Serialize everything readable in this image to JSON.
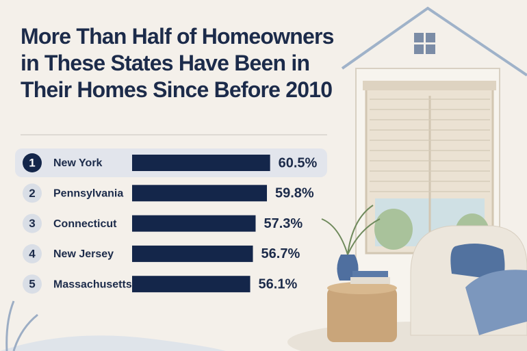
{
  "chart_data": {
    "type": "bar",
    "title": "More Than Half of Homeowners in These States Have Been in Their Homes Since Before 2010",
    "ranks": [
      1,
      2,
      3,
      4,
      5
    ],
    "categories": [
      "New York",
      "Pennsylvania",
      "Connecticut",
      "New Jersey",
      "Massachusetts"
    ],
    "values": [
      60.5,
      59.8,
      57.3,
      56.7,
      56.1
    ],
    "value_labels": [
      "60.5%",
      "59.8%",
      "57.3%",
      "56.7%",
      "56.1%"
    ],
    "color": "#14264a",
    "xlim": [
      30,
      66
    ]
  }
}
